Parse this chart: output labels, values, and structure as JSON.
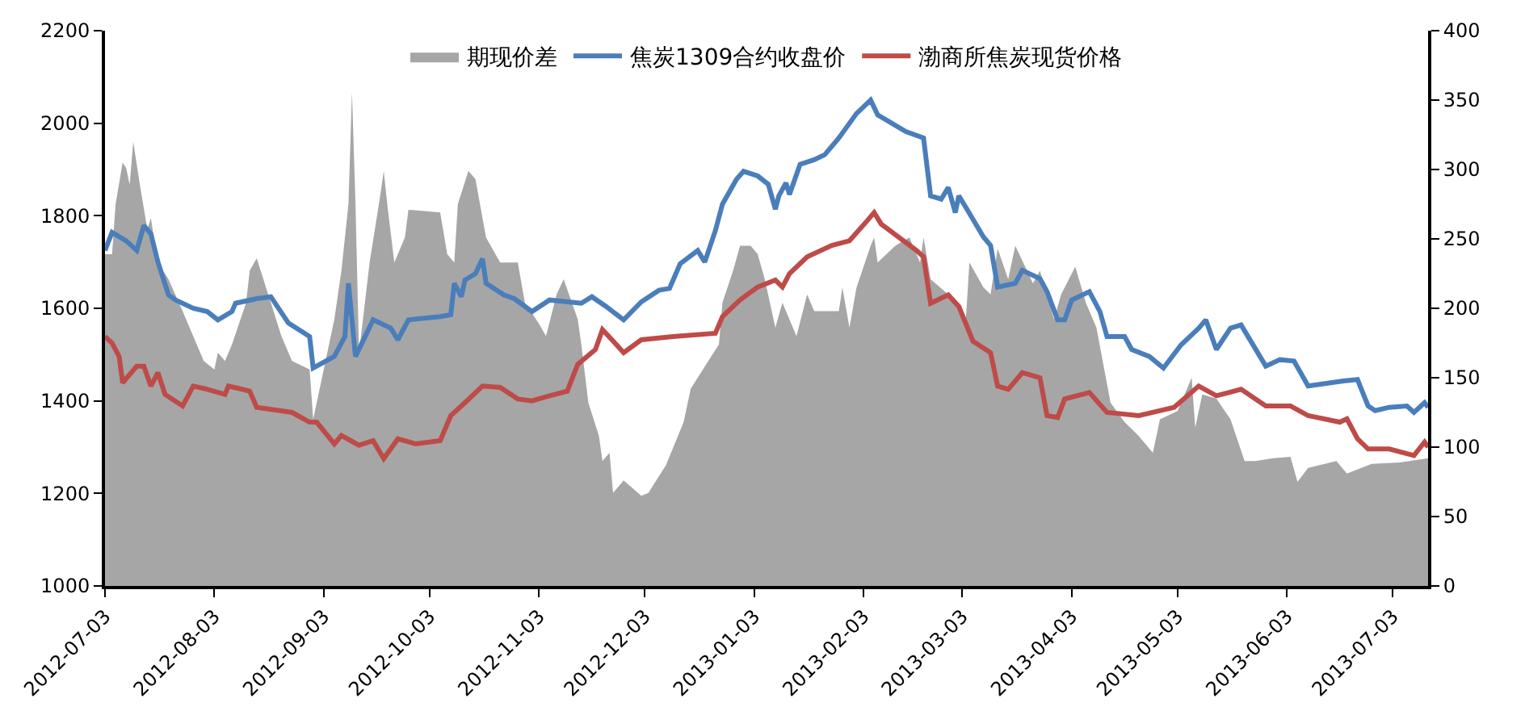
{
  "chart_data": {
    "type": "line",
    "legend": "top",
    "marker": "none",
    "line_style": "solid",
    "xlim": [
      "2012-07-03",
      "2013-07-13"
    ],
    "xticks": [
      "2012-07-03",
      "2012-08-03",
      "2012-09-03",
      "2012-10-03",
      "2012-11-03",
      "2012-12-03",
      "2013-01-03",
      "2013-02-03",
      "2013-03-03",
      "2013-04-03",
      "2013-05-03",
      "2013-06-03",
      "2013-07-03"
    ],
    "ylim": [
      1000,
      2200
    ],
    "yticks": [
      1000,
      1200,
      1400,
      1600,
      1800,
      2000,
      2200
    ],
    "y2lim": [
      0,
      400
    ],
    "y2ticks": [
      0,
      50,
      100,
      150,
      200,
      250,
      300,
      350,
      400
    ],
    "series": [
      {
        "name": "期现价差",
        "type": "area",
        "axis": "y2",
        "color": "#a6a6a6",
        "x": [
          "2012-07-03",
          "2012-07-05",
          "2012-07-06",
          "2012-07-08",
          "2012-07-09",
          "2012-07-10",
          "2012-07-11",
          "2012-07-13",
          "2012-07-15",
          "2012-07-16",
          "2012-07-18",
          "2012-07-21",
          "2012-07-25",
          "2012-07-28",
          "2012-07-31",
          "2012-08-03",
          "2012-08-04",
          "2012-08-06",
          "2012-08-08",
          "2012-08-12",
          "2012-08-13",
          "2012-08-15",
          "2012-08-19",
          "2012-08-22",
          "2012-08-25",
          "2012-08-30",
          "2012-08-31",
          "2012-09-03",
          "2012-09-06",
          "2012-09-08",
          "2012-09-10",
          "2012-09-11",
          "2012-09-12",
          "2012-09-13",
          "2012-09-16",
          "2012-09-19",
          "2012-09-20",
          "2012-09-21",
          "2012-09-23",
          "2012-09-26",
          "2012-09-27",
          "2012-10-06",
          "2012-10-08",
          "2012-10-10",
          "2012-10-11",
          "2012-10-14",
          "2012-10-16",
          "2012-10-19",
          "2012-10-23",
          "2012-10-28",
          "2012-10-30",
          "2012-11-03",
          "2012-11-05",
          "2012-11-08",
          "2012-11-10",
          "2012-11-14",
          "2012-11-15",
          "2012-11-17",
          "2012-11-20",
          "2012-11-21",
          "2012-11-23",
          "2012-11-24",
          "2012-11-27",
          "2012-12-02",
          "2012-12-04",
          "2012-12-09",
          "2012-12-14",
          "2012-12-16",
          "2012-12-21",
          "2012-12-24",
          "2012-12-25",
          "2012-12-28",
          "2012-12-30",
          "2013-01-02",
          "2013-01-04",
          "2013-01-06",
          "2013-01-09",
          "2013-01-11",
          "2013-01-15",
          "2013-01-18",
          "2013-01-20",
          "2013-01-27",
          "2013-01-28",
          "2013-01-30",
          "2013-02-01",
          "2013-02-05",
          "2013-02-06",
          "2013-02-07",
          "2013-02-12",
          "2013-02-16",
          "2013-02-19",
          "2013-02-20",
          "2013-02-22",
          "2013-02-27",
          "2013-03-04",
          "2013-03-05",
          "2013-03-09",
          "2013-03-11",
          "2013-03-13",
          "2013-03-16",
          "2013-03-18",
          "2013-03-23",
          "2013-03-25",
          "2013-03-29",
          "2013-03-31",
          "2013-04-04",
          "2013-04-07",
          "2013-04-10",
          "2013-04-14",
          "2013-04-18",
          "2013-04-22",
          "2013-04-26",
          "2013-04-28",
          "2013-05-03",
          "2013-05-07",
          "2013-05-08",
          "2013-05-10",
          "2013-05-14",
          "2013-05-18",
          "2013-05-22",
          "2013-05-25",
          "2013-05-30",
          "2013-06-04",
          "2013-06-06",
          "2013-06-09",
          "2013-06-17",
          "2013-06-20",
          "2013-06-27",
          "2013-07-05",
          "2013-07-13"
        ],
        "values": [
          239,
          239,
          275,
          305,
          301,
          289,
          320,
          287,
          257,
          265,
          233,
          221,
          198,
          180,
          162,
          156,
          168,
          162,
          174,
          204,
          227,
          236,
          204,
          180,
          162,
          156,
          120,
          156,
          192,
          227,
          275,
          356,
          275,
          168,
          233,
          281,
          299,
          275,
          233,
          251,
          271,
          269,
          239,
          233,
          275,
          299,
          293,
          251,
          233,
          233,
          204,
          189,
          180,
          210,
          221,
          192,
          174,
          132,
          108,
          90,
          96,
          67,
          76,
          65,
          67,
          87,
          118,
          142,
          162,
          174,
          204,
          227,
          245,
          245,
          239,
          221,
          186,
          204,
          180,
          210,
          198,
          198,
          215,
          186,
          215,
          245,
          251,
          233,
          245,
          251,
          233,
          251,
          221,
          210,
          192,
          233,
          215,
          210,
          243,
          221,
          245,
          218,
          227,
          192,
          210,
          230,
          204,
          186,
          132,
          118,
          108,
          96,
          120,
          126,
          150,
          114,
          138,
          135,
          120,
          90,
          90,
          92,
          93,
          75,
          85,
          90,
          81,
          88,
          89,
          92
        ]
      },
      {
        "name": "焦炭1309合约收盘价",
        "color": "#4a7ebb",
        "x": [
          "2012-07-03",
          "2012-07-05",
          "2012-07-09",
          "2012-07-12",
          "2012-07-14",
          "2012-07-16",
          "2012-07-18",
          "2012-07-21",
          "2012-07-23",
          "2012-07-28",
          "2012-08-01",
          "2012-08-04",
          "2012-08-08",
          "2012-08-09",
          "2012-08-15",
          "2012-08-19",
          "2012-08-24",
          "2012-08-30",
          "2012-08-31",
          "2012-09-06",
          "2012-09-09",
          "2012-09-10",
          "2012-09-12",
          "2012-09-17",
          "2012-09-22",
          "2012-09-24",
          "2012-09-27",
          "2012-10-06",
          "2012-10-09",
          "2012-10-10",
          "2012-10-12",
          "2012-10-13",
          "2012-10-16",
          "2012-10-18",
          "2012-10-19",
          "2012-10-24",
          "2012-10-27",
          "2012-11-01",
          "2012-11-06",
          "2012-11-15",
          "2012-11-18",
          "2012-11-22",
          "2012-11-27",
          "2012-12-02",
          "2012-12-07",
          "2012-12-10",
          "2012-12-13",
          "2012-12-18",
          "2012-12-20",
          "2012-12-23",
          "2012-12-25",
          "2012-12-29",
          "2012-12-31",
          "2013-01-04",
          "2013-01-07",
          "2013-01-09",
          "2013-01-10",
          "2013-01-12",
          "2013-01-13",
          "2013-01-16",
          "2013-01-20",
          "2013-01-23",
          "2013-01-27",
          "2013-02-01",
          "2013-02-05",
          "2013-02-07",
          "2013-02-15",
          "2013-02-20",
          "2013-02-22",
          "2013-02-25",
          "2013-02-27",
          "2013-03-01",
          "2013-03-02",
          "2013-03-04",
          "2013-03-09",
          "2013-03-11",
          "2013-03-13",
          "2013-03-18",
          "2013-03-20",
          "2013-03-25",
          "2013-03-27",
          "2013-03-30",
          "2013-04-01",
          "2013-04-03",
          "2013-04-08",
          "2013-04-11",
          "2013-04-13",
          "2013-04-18",
          "2013-04-20",
          "2013-04-25",
          "2013-04-29",
          "2013-05-04",
          "2013-05-09",
          "2013-05-11",
          "2013-05-14",
          "2013-05-18",
          "2013-05-21",
          "2013-05-28",
          "2013-06-01",
          "2013-06-05",
          "2013-06-09",
          "2013-06-19",
          "2013-06-23",
          "2013-06-26",
          "2013-06-28",
          "2013-07-02",
          "2013-07-07",
          "2013-07-09",
          "2013-07-12",
          "2013-07-13"
        ],
        "values": [
          1725,
          1764,
          1746,
          1725,
          1779,
          1761,
          1700,
          1629,
          1618,
          1600,
          1593,
          1575,
          1593,
          1611,
          1621,
          1625,
          1568,
          1539,
          1471,
          1496,
          1539,
          1654,
          1496,
          1575,
          1557,
          1532,
          1575,
          1582,
          1586,
          1654,
          1625,
          1661,
          1675,
          1707,
          1654,
          1629,
          1621,
          1593,
          1618,
          1611,
          1625,
          1604,
          1575,
          1614,
          1639,
          1643,
          1696,
          1725,
          1700,
          1768,
          1825,
          1879,
          1896,
          1886,
          1868,
          1814,
          1843,
          1871,
          1846,
          1911,
          1921,
          1932,
          1968,
          2021,
          2050,
          2018,
          1982,
          1968,
          1843,
          1836,
          1861,
          1807,
          1843,
          1818,
          1754,
          1736,
          1646,
          1654,
          1682,
          1664,
          1636,
          1575,
          1575,
          1618,
          1636,
          1593,
          1539,
          1539,
          1511,
          1496,
          1471,
          1521,
          1557,
          1575,
          1511,
          1557,
          1564,
          1475,
          1489,
          1486,
          1432,
          1443,
          1446,
          1389,
          1379,
          1386,
          1389,
          1375,
          1396,
          1386
        ]
      },
      {
        "name": "渤商所焦炭现货价格",
        "color": "#be4b48",
        "x": [
          "2012-07-03",
          "2012-07-05",
          "2012-07-07",
          "2012-07-08",
          "2012-07-12",
          "2012-07-14",
          "2012-07-16",
          "2012-07-18",
          "2012-07-20",
          "2012-07-25",
          "2012-07-28",
          "2012-08-01",
          "2012-08-06",
          "2012-08-07",
          "2012-08-13",
          "2012-08-15",
          "2012-08-25",
          "2012-08-30",
          "2012-09-01",
          "2012-09-06",
          "2012-09-08",
          "2012-09-13",
          "2012-09-17",
          "2012-09-20",
          "2012-09-24",
          "2012-09-29",
          "2012-10-06",
          "2012-10-09",
          "2012-10-13",
          "2012-10-18",
          "2012-10-23",
          "2012-10-28",
          "2012-11-01",
          "2012-11-06",
          "2012-11-11",
          "2012-11-14",
          "2012-11-19",
          "2012-11-21",
          "2012-11-25",
          "2012-11-27",
          "2012-12-02",
          "2012-12-11",
          "2012-12-23",
          "2012-12-25",
          "2012-12-30",
          "2013-01-04",
          "2013-01-09",
          "2013-01-11",
          "2013-01-13",
          "2013-01-18",
          "2013-01-25",
          "2013-01-30",
          "2013-02-04",
          "2013-02-06",
          "2013-02-08",
          "2013-02-18",
          "2013-02-20",
          "2013-02-22",
          "2013-02-27",
          "2013-03-02",
          "2013-03-06",
          "2013-03-11",
          "2013-03-13",
          "2013-03-16",
          "2013-03-20",
          "2013-03-25",
          "2013-03-27",
          "2013-03-30",
          "2013-04-01",
          "2013-04-08",
          "2013-04-13",
          "2013-04-22",
          "2013-05-02",
          "2013-05-09",
          "2013-05-14",
          "2013-05-21",
          "2013-05-28",
          "2013-06-04",
          "2013-06-09",
          "2013-06-18",
          "2013-06-20",
          "2013-06-23",
          "2013-06-26",
          "2013-07-02",
          "2013-07-09",
          "2013-07-12",
          "2013-07-13"
        ],
        "values": [
          1539,
          1525,
          1496,
          1439,
          1475,
          1475,
          1432,
          1461,
          1414,
          1389,
          1432,
          1425,
          1414,
          1432,
          1421,
          1386,
          1375,
          1354,
          1354,
          1307,
          1325,
          1304,
          1314,
          1275,
          1318,
          1307,
          1314,
          1368,
          1396,
          1432,
          1429,
          1404,
          1400,
          1411,
          1421,
          1479,
          1511,
          1554,
          1521,
          1504,
          1532,
          1539,
          1546,
          1582,
          1618,
          1646,
          1661,
          1646,
          1675,
          1711,
          1736,
          1746,
          1789,
          1807,
          1782,
          1725,
          1711,
          1611,
          1629,
          1604,
          1529,
          1504,
          1432,
          1425,
          1461,
          1450,
          1368,
          1364,
          1404,
          1418,
          1375,
          1368,
          1386,
          1432,
          1411,
          1425,
          1389,
          1389,
          1368,
          1354,
          1361,
          1318,
          1296,
          1296,
          1282,
          1311,
          1300
        ]
      }
    ]
  }
}
